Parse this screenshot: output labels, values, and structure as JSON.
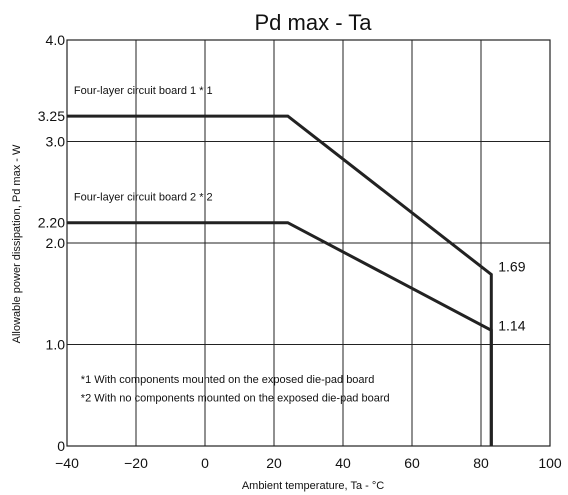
{
  "chart_data": {
    "type": "line",
    "title": "Pd max  -  Ta",
    "xlabel": "Ambient temperature, Ta - °C",
    "ylabel": "Allowable power dissipation, Pd max - W",
    "xlim": [
      -40,
      100
    ],
    "ylim": [
      0,
      4.0
    ],
    "x_ticks": [
      -40,
      -20,
      0,
      20,
      40,
      60,
      80,
      100
    ],
    "x_tick_labels": [
      "−40",
      "−20",
      "0",
      "20",
      "40",
      "60",
      "80",
      "100"
    ],
    "x_gridlines": [
      -20,
      0,
      20,
      40,
      60,
      80
    ],
    "y_ticks": [
      0,
      1.0,
      2.0,
      2.2,
      3.0,
      3.25,
      4.0
    ],
    "y_tick_labels": [
      "0",
      "1.0",
      "2.0",
      "2.20",
      "3.0",
      "3.25",
      "4.0"
    ],
    "y_gridlines": [
      1.0,
      2.0,
      3.0
    ],
    "grid": true,
    "series": [
      {
        "name": "Four-layer circuit board 1 * 1",
        "x": [
          -40,
          24,
          83,
          83,
          83
        ],
        "y": [
          3.25,
          3.25,
          1.69,
          1.14,
          0
        ]
      },
      {
        "name": "Four-layer circuit board 2 * 2",
        "x": [
          -40,
          24,
          83,
          83
        ],
        "y": [
          2.2,
          2.2,
          1.14,
          0
        ]
      }
    ],
    "series_labels": [
      {
        "text": "Four-layer circuit board 1 * 1",
        "x": -38,
        "y": 3.47
      },
      {
        "text": "Four-layer circuit board 2 * 2",
        "x": -38,
        "y": 2.42
      }
    ],
    "data_labels": [
      {
        "text": "1.69",
        "x": 85,
        "y": 1.72
      },
      {
        "text": "1.14",
        "x": 85,
        "y": 1.14
      }
    ],
    "notes": [
      {
        "text": "*1 With components mounted on the exposed die-pad board",
        "x": -36,
        "y": 0.62
      },
      {
        "text": "*2 With no components mounted on the exposed die-pad board",
        "x": -36,
        "y": 0.44
      }
    ]
  }
}
